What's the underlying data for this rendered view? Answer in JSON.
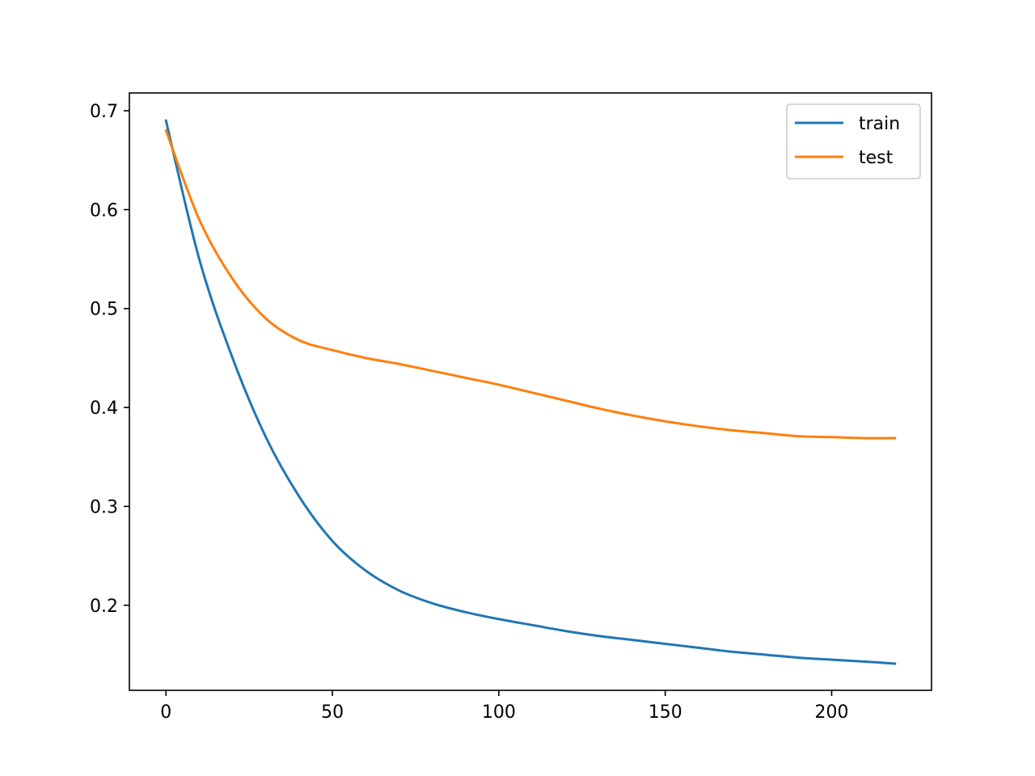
{
  "chart_data": {
    "type": "line",
    "title": "",
    "xlabel": "",
    "ylabel": "",
    "xlim": [
      -11,
      230
    ],
    "ylim": [
      0.114,
      0.718
    ],
    "xticks": [
      0,
      50,
      100,
      150,
      200
    ],
    "xtick_labels": [
      "0",
      "50",
      "100",
      "150",
      "200"
    ],
    "yticks": [
      0.2,
      0.3,
      0.4,
      0.5,
      0.6,
      0.7
    ],
    "ytick_labels": [
      "0.2",
      "0.3",
      "0.4",
      "0.5",
      "0.6",
      "0.7"
    ],
    "grid": false,
    "legend": {
      "position": "top-right"
    },
    "series": [
      {
        "name": "train",
        "color": "#1f77b4",
        "x": [
          0,
          10,
          20,
          30,
          40,
          50,
          60,
          70,
          80,
          90,
          100,
          110,
          120,
          130,
          140,
          150,
          160,
          170,
          180,
          190,
          200,
          210,
          219
        ],
        "y": [
          0.69,
          0.55,
          0.45,
          0.37,
          0.31,
          0.265,
          0.235,
          0.215,
          0.202,
          0.193,
          0.186,
          0.18,
          0.174,
          0.169,
          0.165,
          0.161,
          0.157,
          0.153,
          0.15,
          0.147,
          0.145,
          0.143,
          0.141
        ]
      },
      {
        "name": "test",
        "color": "#ff7f0e",
        "x": [
          0,
          10,
          20,
          30,
          40,
          50,
          60,
          70,
          80,
          90,
          100,
          110,
          120,
          130,
          140,
          150,
          160,
          170,
          180,
          190,
          200,
          210,
          219
        ],
        "y": [
          0.68,
          0.59,
          0.53,
          0.49,
          0.468,
          0.458,
          0.45,
          0.444,
          0.437,
          0.43,
          0.423,
          0.415,
          0.407,
          0.399,
          0.392,
          0.386,
          0.381,
          0.377,
          0.374,
          0.371,
          0.37,
          0.369,
          0.369
        ]
      }
    ]
  }
}
